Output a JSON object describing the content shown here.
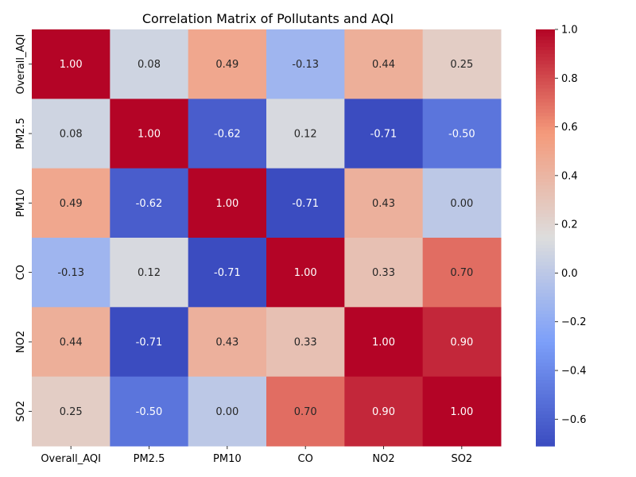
{
  "chart_data": {
    "type": "heatmap",
    "title": "Correlation Matrix of Pollutants and AQI",
    "xlabel": "",
    "ylabel": "",
    "x_categories": [
      "Overall_AQI",
      "PM2.5",
      "PM10",
      "CO",
      "NO2",
      "SO2"
    ],
    "y_categories": [
      "Overall_AQI",
      "PM2.5",
      "PM10",
      "CO",
      "NO2",
      "SO2"
    ],
    "values": [
      [
        1.0,
        0.08,
        0.49,
        -0.13,
        0.44,
        0.25
      ],
      [
        0.08,
        1.0,
        -0.62,
        0.12,
        -0.71,
        -0.5
      ],
      [
        0.49,
        -0.62,
        1.0,
        -0.71,
        0.43,
        0.0
      ],
      [
        -0.13,
        0.12,
        -0.71,
        1.0,
        0.33,
        0.7
      ],
      [
        0.44,
        -0.71,
        0.43,
        0.33,
        1.0,
        0.9
      ],
      [
        0.25,
        -0.5,
        0.0,
        0.7,
        0.9,
        1.0
      ]
    ],
    "value_format": "0.00",
    "colormap": "coolwarm",
    "colorbar": {
      "range": [
        -0.71,
        1.0
      ],
      "ticks": [
        -0.6,
        -0.4,
        -0.2,
        0.0,
        0.2,
        0.4,
        0.6,
        0.8,
        1.0
      ],
      "tick_labels": [
        "−0.6",
        "−0.4",
        "−0.2",
        "0.0",
        "0.2",
        "0.4",
        "0.6",
        "0.8",
        "1.0"
      ],
      "placement": "right"
    },
    "grid": false
  }
}
